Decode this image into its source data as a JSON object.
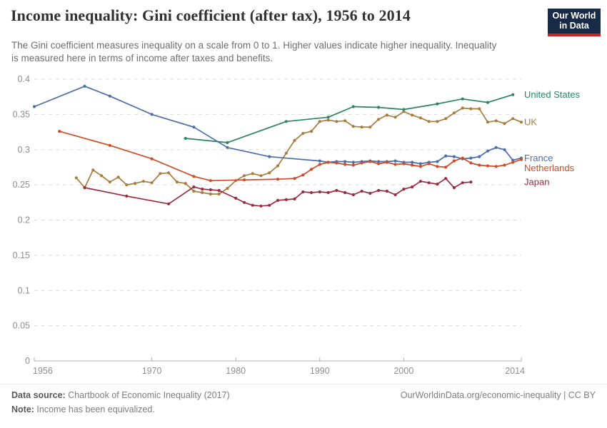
{
  "chart_data": {
    "type": "line",
    "title": "Income inequality: Gini coefficient (after tax), 1956 to 2014",
    "subtitle": "The Gini coefficient measures inequality on a scale from 0 to 1. Higher values indicate higher inequality. Inequality is measured here in terms of income after taxes and benefits.",
    "xlabel": "",
    "ylabel": "",
    "xlim": [
      1956,
      2014
    ],
    "ylim": [
      0,
      0.4
    ],
    "grid": "dashed horizontal",
    "legend_position": "right-end-labels",
    "x_ticks": [
      1956,
      1970,
      1980,
      1990,
      2000,
      2014
    ],
    "y_ticks": [
      0,
      0.05,
      0.1,
      0.15,
      0.2,
      0.25,
      0.3,
      0.35,
      0.4
    ],
    "y_tick_labels": [
      "0",
      "0.05",
      "0.1",
      "0.15",
      "0.2",
      "0.25",
      "0.3",
      "0.35",
      "0.4"
    ],
    "series": [
      {
        "name": "United States",
        "color": "#2C8465",
        "points": [
          [
            1974,
            0.316
          ],
          [
            1979,
            0.31
          ],
          [
            1986,
            0.34
          ],
          [
            1991,
            0.346
          ],
          [
            1994,
            0.361
          ],
          [
            1997,
            0.36
          ],
          [
            2000,
            0.357
          ],
          [
            2004,
            0.365
          ],
          [
            2007,
            0.372
          ],
          [
            2010,
            0.367
          ],
          [
            2013,
            0.378
          ]
        ]
      },
      {
        "name": "UK",
        "color": "#A87C3C",
        "points": [
          [
            1961,
            0.26
          ],
          [
            1962,
            0.246
          ],
          [
            1963,
            0.271
          ],
          [
            1964,
            0.263
          ],
          [
            1965,
            0.254
          ],
          [
            1966,
            0.261
          ],
          [
            1967,
            0.25
          ],
          [
            1968,
            0.252
          ],
          [
            1969,
            0.255
          ],
          [
            1970,
            0.253
          ],
          [
            1971,
            0.266
          ],
          [
            1972,
            0.267
          ],
          [
            1973,
            0.254
          ],
          [
            1974,
            0.252
          ],
          [
            1975,
            0.241
          ],
          [
            1976,
            0.239
          ],
          [
            1977,
            0.237
          ],
          [
            1978,
            0.237
          ],
          [
            1979,
            0.245
          ],
          [
            1980,
            0.256
          ],
          [
            1981,
            0.263
          ],
          [
            1982,
            0.266
          ],
          [
            1983,
            0.263
          ],
          [
            1984,
            0.267
          ],
          [
            1985,
            0.277
          ],
          [
            1986,
            0.295
          ],
          [
            1987,
            0.313
          ],
          [
            1988,
            0.323
          ],
          [
            1989,
            0.326
          ],
          [
            1990,
            0.34
          ],
          [
            1991,
            0.342
          ],
          [
            1992,
            0.34
          ],
          [
            1993,
            0.341
          ],
          [
            1994,
            0.333
          ],
          [
            1995,
            0.332
          ],
          [
            1996,
            0.332
          ],
          [
            1997,
            0.343
          ],
          [
            1998,
            0.349
          ],
          [
            1999,
            0.346
          ],
          [
            2000,
            0.354
          ],
          [
            2001,
            0.349
          ],
          [
            2002,
            0.345
          ],
          [
            2003,
            0.34
          ],
          [
            2004,
            0.34
          ],
          [
            2005,
            0.344
          ],
          [
            2006,
            0.352
          ],
          [
            2007,
            0.359
          ],
          [
            2008,
            0.358
          ],
          [
            2009,
            0.358
          ],
          [
            2010,
            0.339
          ],
          [
            2011,
            0.341
          ],
          [
            2012,
            0.337
          ],
          [
            2013,
            0.344
          ],
          [
            2014,
            0.339
          ]
        ]
      },
      {
        "name": "France",
        "color": "#4C6EA8",
        "points": [
          [
            1956,
            0.361
          ],
          [
            1962,
            0.39
          ],
          [
            1965,
            0.376
          ],
          [
            1970,
            0.35
          ],
          [
            1975,
            0.332
          ],
          [
            1979,
            0.303
          ],
          [
            1984,
            0.29
          ],
          [
            1990,
            0.284
          ],
          [
            1991,
            0.282
          ],
          [
            1992,
            0.283
          ],
          [
            1993,
            0.283
          ],
          [
            1994,
            0.282
          ],
          [
            1995,
            0.283
          ],
          [
            1996,
            0.284
          ],
          [
            1997,
            0.283
          ],
          [
            1998,
            0.283
          ],
          [
            1999,
            0.284
          ],
          [
            2000,
            0.282
          ],
          [
            2001,
            0.282
          ],
          [
            2002,
            0.28
          ],
          [
            2003,
            0.282
          ],
          [
            2004,
            0.283
          ],
          [
            2005,
            0.291
          ],
          [
            2006,
            0.29
          ],
          [
            2007,
            0.287
          ],
          [
            2008,
            0.288
          ],
          [
            2009,
            0.29
          ],
          [
            2010,
            0.298
          ],
          [
            2011,
            0.303
          ],
          [
            2012,
            0.3
          ],
          [
            2013,
            0.285
          ],
          [
            2014,
            0.288
          ]
        ]
      },
      {
        "name": "Netherlands",
        "color": "#CF4A27",
        "points": [
          [
            1959,
            0.326
          ],
          [
            1965,
            0.306
          ],
          [
            1970,
            0.287
          ],
          [
            1975,
            0.262
          ],
          [
            1977,
            0.256
          ],
          [
            1981,
            0.257
          ],
          [
            1985,
            0.258
          ],
          [
            1987,
            0.259
          ],
          [
            1988,
            0.264
          ],
          [
            1989,
            0.272
          ],
          [
            1990,
            0.279
          ],
          [
            1991,
            0.282
          ],
          [
            1992,
            0.281
          ],
          [
            1993,
            0.279
          ],
          [
            1994,
            0.278
          ],
          [
            1995,
            0.281
          ],
          [
            1996,
            0.283
          ],
          [
            1997,
            0.28
          ],
          [
            1998,
            0.282
          ],
          [
            1999,
            0.279
          ],
          [
            2000,
            0.28
          ],
          [
            2001,
            0.278
          ],
          [
            2002,
            0.276
          ],
          [
            2003,
            0.28
          ],
          [
            2004,
            0.276
          ],
          [
            2005,
            0.275
          ],
          [
            2006,
            0.284
          ],
          [
            2007,
            0.288
          ],
          [
            2008,
            0.281
          ],
          [
            2009,
            0.278
          ],
          [
            2010,
            0.277
          ],
          [
            2011,
            0.276
          ],
          [
            2012,
            0.278
          ],
          [
            2013,
            0.282
          ],
          [
            2014,
            0.286
          ]
        ]
      },
      {
        "name": "Japan",
        "color": "#9C2B40",
        "points": [
          [
            1962,
            0.246
          ],
          [
            1967,
            0.234
          ],
          [
            1972,
            0.223
          ],
          [
            1975,
            0.247
          ],
          [
            1976,
            0.244
          ],
          [
            1977,
            0.243
          ],
          [
            1978,
            0.242
          ],
          [
            1980,
            0.231
          ],
          [
            1981,
            0.225
          ],
          [
            1982,
            0.221
          ],
          [
            1983,
            0.22
          ],
          [
            1984,
            0.221
          ],
          [
            1985,
            0.228
          ],
          [
            1986,
            0.229
          ],
          [
            1987,
            0.23
          ],
          [
            1988,
            0.24
          ],
          [
            1989,
            0.239
          ],
          [
            1990,
            0.24
          ],
          [
            1991,
            0.239
          ],
          [
            1992,
            0.242
          ],
          [
            1993,
            0.239
          ],
          [
            1994,
            0.236
          ],
          [
            1995,
            0.241
          ],
          [
            1996,
            0.238
          ],
          [
            1997,
            0.242
          ],
          [
            1998,
            0.241
          ],
          [
            1999,
            0.236
          ],
          [
            2000,
            0.244
          ],
          [
            2001,
            0.247
          ],
          [
            2002,
            0.255
          ],
          [
            2003,
            0.253
          ],
          [
            2004,
            0.251
          ],
          [
            2005,
            0.259
          ],
          [
            2006,
            0.246
          ],
          [
            2007,
            0.253
          ],
          [
            2008,
            0.254
          ]
        ]
      }
    ]
  },
  "logo": {
    "line1": "Our World",
    "line2": "in Data",
    "bg_color": "#1A2B47",
    "accent_color": "#CD2323"
  },
  "footer": {
    "datasource_label": "Data source:",
    "datasource_value": " Chartbook of Economic Inequality (2017)",
    "note_label": "Note:",
    "note_value": " Income has been equivalized.",
    "link": "OurWorldinData.org/economic-inequality | CC BY"
  },
  "style_colors": {
    "gridline": "#DCDCDC",
    "axis": "#B0B0B0",
    "tick_label": "#8F8F8F"
  }
}
